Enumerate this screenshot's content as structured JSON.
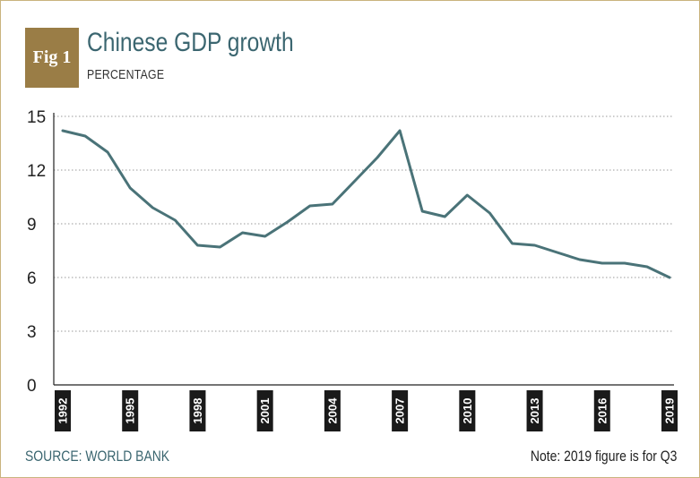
{
  "figure": {
    "badge": "Fig 1",
    "title": "Chinese GDP growth",
    "subtitle": "PERCENTAGE",
    "source": "SOURCE: WORLD BANK",
    "note": "Note: 2019 figure is for Q3"
  },
  "colors": {
    "line": "#4a7378",
    "accent": "#9a7d46",
    "title": "#3b6670",
    "grid": "#9a9a9a"
  },
  "chart_data": {
    "type": "line",
    "title": "Chinese GDP growth",
    "subtitle": "PERCENTAGE",
    "xlabel": "",
    "ylabel": "",
    "ylim": [
      0,
      15
    ],
    "yticks": [
      0,
      3,
      6,
      9,
      12,
      15
    ],
    "xlim": [
      1992,
      2019
    ],
    "xticks": [
      1992,
      1995,
      1998,
      2001,
      2004,
      2007,
      2010,
      2013,
      2016,
      2019
    ],
    "grid": "horizontal dotted",
    "series": [
      {
        "x": [
          1992,
          1993,
          1994,
          1995,
          1996,
          1997,
          1998,
          1999,
          2000,
          2001,
          2002,
          2003,
          2004,
          2005,
          2006,
          2007,
          2008,
          2009,
          2010,
          2011,
          2012,
          2013,
          2014,
          2015,
          2016,
          2017,
          2018,
          2019
        ],
        "values": [
          14.2,
          13.9,
          13.0,
          11.0,
          9.9,
          9.2,
          7.8,
          7.7,
          8.5,
          8.3,
          9.1,
          10.0,
          10.1,
          11.4,
          12.7,
          14.2,
          9.7,
          9.4,
          10.6,
          9.6,
          7.9,
          7.8,
          7.4,
          7.0,
          6.8,
          6.8,
          6.6,
          6.0
        ]
      }
    ]
  }
}
